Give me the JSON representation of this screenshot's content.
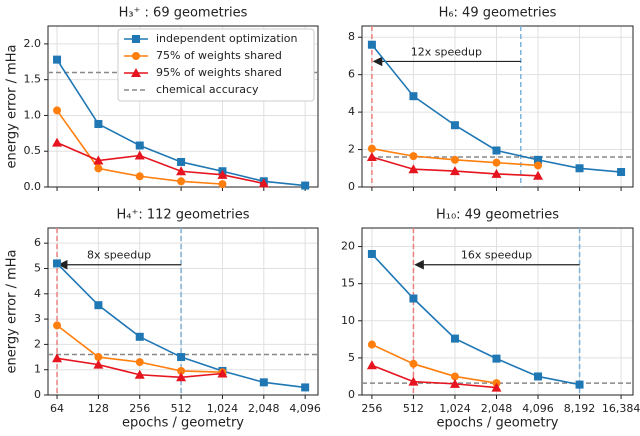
{
  "chart_data": [
    {
      "type": "line",
      "title": "H₃⁺ : 69 geometries",
      "y_label": "energy error / mHa",
      "log_x": true,
      "log_base": 2,
      "grid": true,
      "show_xtick_labels": false,
      "x": [
        64,
        128,
        256,
        512,
        1024,
        2048,
        4096
      ],
      "xlim": [
        55,
        5080
      ],
      "xticks": [
        64,
        128,
        256,
        512,
        1024,
        2048,
        4096
      ],
      "ylim": [
        0,
        2.25
      ],
      "yticks": [
        {
          "value": 0,
          "label": "0.0"
        },
        0.5,
        {
          "value": 1,
          "label": "1.0"
        },
        1.5,
        {
          "value": 2,
          "label": "2.0"
        }
      ],
      "legend": "upper right",
      "reference_y": 1.6,
      "reference_name": "chemical accuracy",
      "series": [
        {
          "name": "independent optimization",
          "color": "#1f77b4",
          "marker": "square",
          "values": [
            1.78,
            0.88,
            0.58,
            0.35,
            0.22,
            0.08,
            0.02
          ]
        },
        {
          "name": "75% of weights shared",
          "color": "#ff7f0e",
          "marker": "circle",
          "values": [
            1.07,
            0.26,
            0.15,
            0.08,
            0.04,
            null,
            null
          ]
        },
        {
          "name": "95% of weights shared",
          "color": "#e6141e",
          "marker": "triangle",
          "values": [
            0.62,
            0.37,
            0.44,
            0.22,
            0.17,
            0.05,
            null
          ]
        }
      ]
    },
    {
      "type": "line",
      "title": "H₆: 49 geometries",
      "log_x": true,
      "log_base": 2,
      "grid": true,
      "show_xtick_labels": false,
      "x": [
        256,
        512,
        1024,
        2048,
        4096,
        8192,
        16384
      ],
      "xlim": [
        217,
        19990
      ],
      "xticks": [
        256,
        512,
        1024,
        2048,
        4096,
        8192,
        16384
      ],
      "ylim": [
        0,
        8.6
      ],
      "yticks": [
        0,
        2,
        4,
        6,
        8
      ],
      "reference_y": 1.6,
      "speedup": {
        "text": "12x speedup",
        "from": 3072,
        "to": 256
      },
      "series": [
        {
          "color": "#1f77b4",
          "marker": "square",
          "values": [
            7.6,
            4.85,
            3.3,
            1.95,
            1.45,
            1.0,
            0.8
          ]
        },
        {
          "color": "#ff7f0e",
          "marker": "circle",
          "values": [
            2.05,
            1.65,
            1.45,
            1.3,
            1.15,
            null,
            null
          ]
        },
        {
          "color": "#e6141e",
          "marker": "triangle",
          "values": [
            1.6,
            0.95,
            0.85,
            0.7,
            0.6,
            null,
            null
          ]
        }
      ]
    },
    {
      "type": "line",
      "title": "H₄⁺: 112 geometries",
      "x_label": "epochs / geometry",
      "y_label": "energy error / mHa",
      "log_x": true,
      "log_base": 2,
      "grid": true,
      "show_xtick_labels": true,
      "x": [
        64,
        128,
        256,
        512,
        1024,
        2048,
        4096
      ],
      "xlim": [
        55,
        5080
      ],
      "xticks": [
        64,
        128,
        256,
        512,
        {
          "value": 1024,
          "label": "1,024"
        },
        {
          "value": 2048,
          "label": "2,048"
        },
        {
          "value": 4096,
          "label": "4,096"
        }
      ],
      "ylim": [
        0,
        6.6
      ],
      "yticks": [
        0,
        1,
        2,
        3,
        4,
        5,
        6
      ],
      "reference_y": 1.6,
      "speedup": {
        "text": "8x speedup",
        "from": 512,
        "to": 64
      },
      "series": [
        {
          "color": "#1f77b4",
          "marker": "square",
          "values": [
            5.2,
            3.55,
            2.3,
            1.5,
            0.95,
            0.5,
            0.3
          ]
        },
        {
          "color": "#ff7f0e",
          "marker": "circle",
          "values": [
            2.75,
            1.5,
            1.3,
            0.95,
            0.9,
            null,
            null
          ]
        },
        {
          "color": "#e6141e",
          "marker": "triangle",
          "values": [
            1.45,
            1.2,
            0.8,
            0.7,
            0.85,
            null,
            null
          ]
        }
      ]
    },
    {
      "type": "line",
      "title": "H₁₀: 49 geometries",
      "x_label": "epochs / geometry",
      "log_x": true,
      "log_base": 2,
      "grid": true,
      "show_xtick_labels": true,
      "x": [
        256,
        512,
        1024,
        2048,
        4096,
        8192,
        16384
      ],
      "xlim": [
        217,
        19990
      ],
      "xticks": [
        256,
        512,
        {
          "value": 1024,
          "label": "1,024"
        },
        {
          "value": 2048,
          "label": "2,048"
        },
        {
          "value": 4096,
          "label": "4,096"
        },
        {
          "value": 8192,
          "label": "8,192"
        },
        {
          "value": 16384,
          "label": "16,384"
        }
      ],
      "ylim": [
        0,
        22.5
      ],
      "yticks": [
        0,
        5,
        10,
        15,
        20
      ],
      "reference_y": 1.6,
      "speedup": {
        "text": "16x speedup",
        "from": 8192,
        "to": 512
      },
      "series": [
        {
          "color": "#1f77b4",
          "marker": "square",
          "values": [
            19,
            13,
            7.6,
            4.9,
            2.5,
            1.4,
            null
          ]
        },
        {
          "color": "#ff7f0e",
          "marker": "circle",
          "values": [
            6.8,
            4.2,
            2.5,
            1.6,
            null,
            null,
            null
          ]
        },
        {
          "color": "#e6141e",
          "marker": "triangle",
          "values": [
            4.0,
            1.8,
            1.5,
            1.0,
            null,
            null,
            null
          ]
        }
      ]
    }
  ]
}
